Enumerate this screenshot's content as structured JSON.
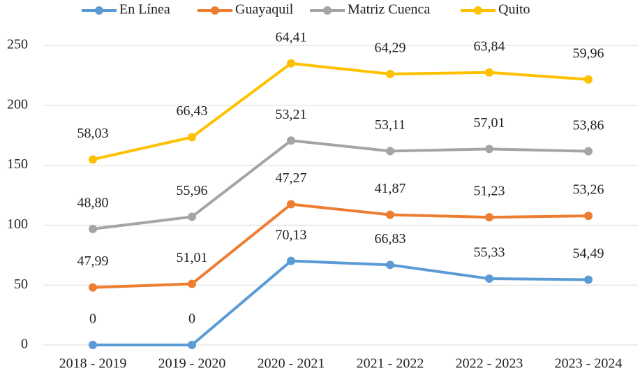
{
  "chart_data": {
    "type": "line",
    "stacked": true,
    "categories": [
      "2018 - 2019",
      "2019 - 2020",
      "2020 - 2021",
      "2021 - 2022",
      "2022 - 2023",
      "2023 - 2024"
    ],
    "series": [
      {
        "name": "En Línea",
        "color": "#5b9bd5",
        "values": [
          0,
          0,
          70.13,
          66.83,
          55.33,
          54.49
        ],
        "value_labels": [
          "0",
          "0",
          "70,13",
          "66,83",
          "55,33",
          "54,49"
        ]
      },
      {
        "name": "Guayaquil",
        "color": "#ed7d31",
        "values": [
          47.99,
          51.01,
          47.27,
          41.87,
          51.23,
          53.26
        ],
        "value_labels": [
          "47,99",
          "51,01",
          "47,27",
          "41,87",
          "51,23",
          "53,26"
        ]
      },
      {
        "name": "Matriz Cuenca",
        "color": "#a5a5a5",
        "values": [
          48.8,
          55.96,
          53.21,
          53.11,
          57.01,
          53.86
        ],
        "value_labels": [
          "48,80",
          "55,96",
          "53,21",
          "53,11",
          "57,01",
          "53,86"
        ]
      },
      {
        "name": "Quito",
        "color": "#ffc000",
        "values": [
          58.03,
          66.43,
          64.41,
          64.29,
          63.84,
          59.96
        ],
        "value_labels": [
          "58,03",
          "66,43",
          "64,41",
          "64,29",
          "63,84",
          "59,96"
        ]
      }
    ],
    "ylim": [
      0,
      250
    ],
    "yticks": [
      0,
      50,
      100,
      150,
      200,
      250
    ],
    "grid": true,
    "legend": "top"
  }
}
